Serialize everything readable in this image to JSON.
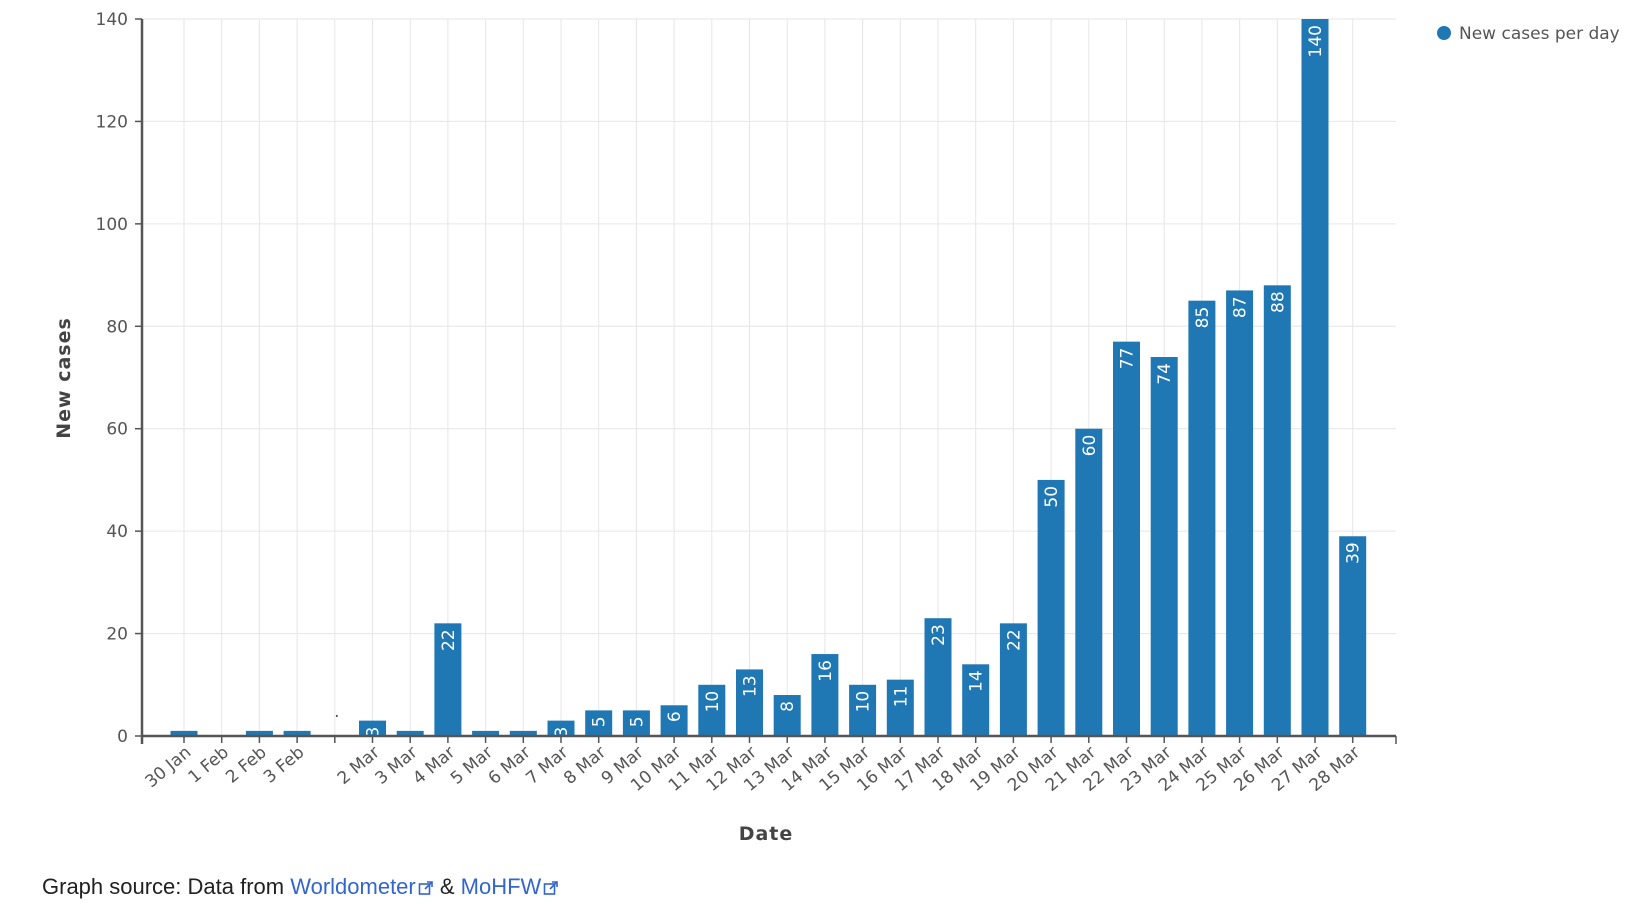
{
  "chart_data": {
    "type": "bar",
    "xlabel": "Date",
    "ylabel": "New cases",
    "ylim": [
      0,
      140
    ],
    "yticks": [
      0,
      20,
      40,
      60,
      80,
      100,
      120,
      140
    ],
    "legend": {
      "label": "New cases per day",
      "position": "top-right"
    },
    "grid": true,
    "color": "#1f77b4",
    "categories": [
      "30 Jan",
      "1 Feb",
      "2 Feb",
      "3 Feb",
      "",
      "2 Mar",
      "3 Mar",
      "4 Mar",
      "5 Mar",
      "6 Mar",
      "7 Mar",
      "8 Mar",
      "9 Mar",
      "10 Mar",
      "11 Mar",
      "12 Mar",
      "13 Mar",
      "14 Mar",
      "15 Mar",
      "16 Mar",
      "17 Mar",
      "18 Mar",
      "19 Mar",
      "20 Mar",
      "21 Mar",
      "22 Mar",
      "23 Mar",
      "24 Mar",
      "25 Mar",
      "26 Mar",
      "27 Mar",
      "28 Mar"
    ],
    "values": [
      1,
      0,
      1,
      1,
      null,
      3,
      1,
      22,
      1,
      1,
      3,
      5,
      5,
      6,
      10,
      13,
      8,
      16,
      10,
      11,
      23,
      14,
      22,
      50,
      60,
      77,
      74,
      85,
      87,
      88,
      140,
      39
    ],
    "data_labels": [
      "",
      "",
      "",
      "",
      "",
      "3",
      "",
      "22",
      "",
      "",
      "3",
      "5",
      "5",
      "6",
      "10",
      "13",
      "8",
      "16",
      "10",
      "11",
      "23",
      "14",
      "22",
      "50",
      "60",
      "77",
      "74",
      "85",
      "87",
      "88",
      "140",
      "39"
    ],
    "gap_marker": "·"
  },
  "source": {
    "prefix": "Graph source: Data from ",
    "link1": "Worldometer",
    "separator": " & ",
    "link2": "MoHFW"
  }
}
